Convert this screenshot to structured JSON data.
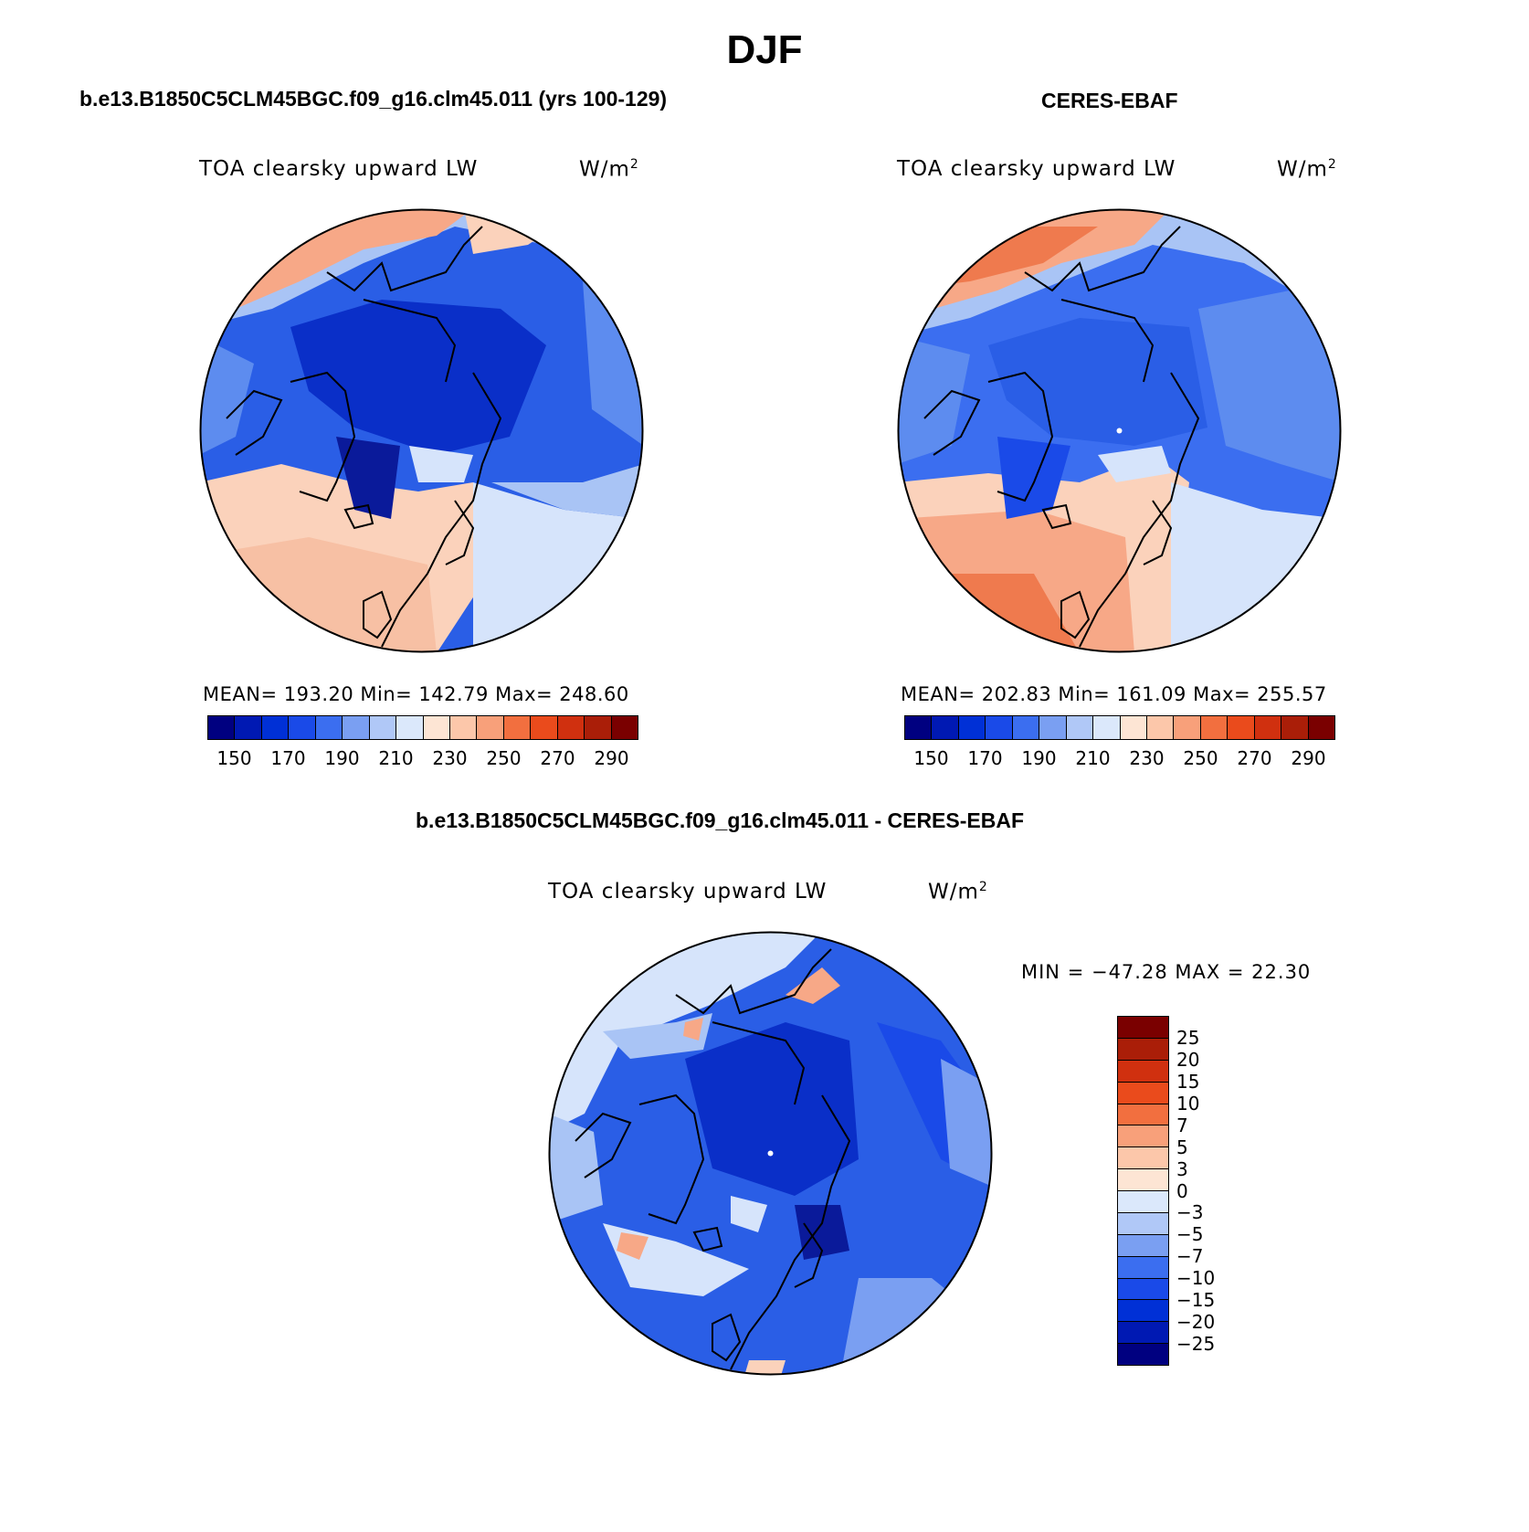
{
  "title": "DJF",
  "panels": [
    {
      "heading": "b.e13.B1850C5CLM45BGC.f09_g16.clm45.011 (yrs 100-129)",
      "variable": "TOA clearsky upward LW",
      "units_base": "W/m",
      "units_exp": "2",
      "stats": "MEAN= 193.20   Min= 142.79   Max= 248.60"
    },
    {
      "heading": "CERES-EBAF",
      "variable": "TOA clearsky upward LW",
      "units_base": "W/m",
      "units_exp": "2",
      "stats": "MEAN= 202.83   Min= 161.09   Max= 255.57"
    }
  ],
  "diff": {
    "heading": "b.e13.B1850C5CLM45BGC.f09_g16.clm45.011 - CERES-EBAF",
    "variable": "TOA clearsky upward LW",
    "units_base": "W/m",
    "units_exp": "2",
    "minmax": "MIN = −47.28 MAX =   22.30"
  },
  "colorbar_main": {
    "colors": [
      "#000080",
      "#0019b3",
      "#0030d6",
      "#1a4ae8",
      "#3b6ef0",
      "#7a9ff2",
      "#b0c8f7",
      "#dbe8fb",
      "#fde5d4",
      "#fcc7aa",
      "#f8a07a",
      "#f26f3f",
      "#ea4b1c",
      "#d0300f",
      "#aa1e08",
      "#7a0000"
    ],
    "labels": [
      "150",
      "170",
      "190",
      "210",
      "230",
      "250",
      "270",
      "290"
    ]
  },
  "colorbar_diff": {
    "colors": [
      "#7a0000",
      "#aa1e08",
      "#d0300f",
      "#ea4b1c",
      "#f26f3f",
      "#f8a07a",
      "#fcc7aa",
      "#fde5d4",
      "#dbe8fb",
      "#b0c8f7",
      "#7a9ff2",
      "#3b6ef0",
      "#1a4ae8",
      "#0030d6",
      "#0019b3",
      "#000080"
    ],
    "labels": [
      "25",
      "20",
      "15",
      "10",
      "7",
      "5",
      "3",
      "0",
      "−3",
      "−5",
      "−7",
      "−10",
      "−15",
      "−20",
      "−25"
    ]
  },
  "map_colors": {
    "deep": "#0a2fc8",
    "mid": "#2a5ee6",
    "light": "#5d8cef",
    "pale": "#a9c4f5",
    "paler": "#d6e4fb",
    "warm1": "#fbd2bb",
    "warm2": "#f7a887",
    "warm3": "#ef7a4e",
    "darkest": "#0a1a9a"
  }
}
